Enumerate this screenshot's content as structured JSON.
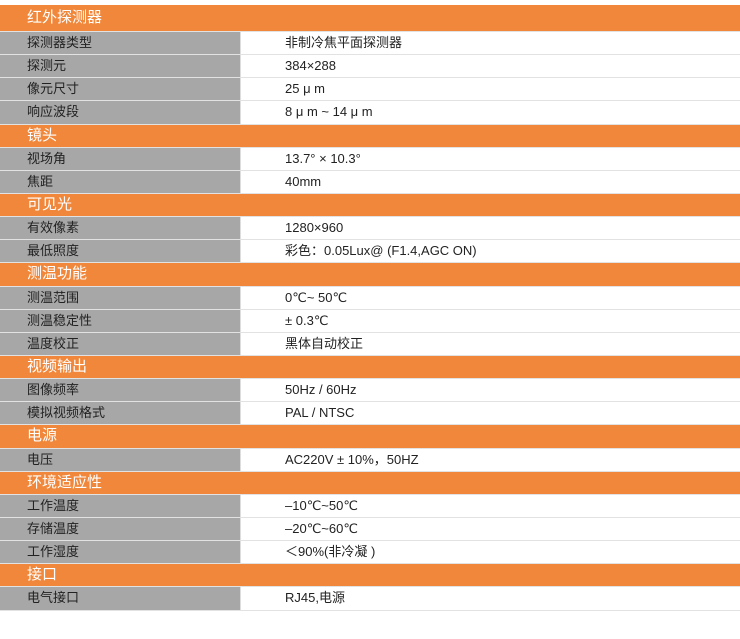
{
  "accent_color": "#F0873A",
  "label_bg": "#A7A7A7",
  "sections": [
    {
      "title": "红外探测器",
      "rows": [
        [
          "探测器类型",
          "非制冷焦平面探测器"
        ],
        [
          "探测元",
          "384×288"
        ],
        [
          "像元尺寸",
          "25 μ m"
        ],
        [
          "响应波段",
          "8 μ m ~ 14 μ m"
        ]
      ]
    },
    {
      "title": "镜头",
      "rows": [
        [
          "视场角",
          "13.7°  × 10.3°"
        ],
        [
          "焦距",
          "40mm"
        ]
      ]
    },
    {
      "title": "可见光",
      "rows": [
        [
          "有效像素",
          "1280×960"
        ],
        [
          "最低照度",
          "彩色：0.05Lux@ (F1.4,AGC ON)"
        ]
      ]
    },
    {
      "title": "测温功能",
      "rows": [
        [
          "测温范围",
          "0℃~ 50℃"
        ],
        [
          "测温稳定性",
          "± 0.3℃"
        ],
        [
          "温度校正",
          "黑体自动校正"
        ]
      ]
    },
    {
      "title": "视频输出",
      "rows": [
        [
          "图像频率",
          "50Hz / 60Hz"
        ],
        [
          "模拟视频格式",
          "PAL / NTSC"
        ]
      ]
    },
    {
      "title": "电源",
      "rows": [
        [
          "电压",
          "AC220V ± 10%，50HZ"
        ]
      ]
    },
    {
      "title": "环境适应性",
      "rows": [
        [
          "工作温度",
          "–10℃~50℃"
        ],
        [
          "存储温度",
          "–20℃~60℃"
        ],
        [
          "工作湿度",
          "＜90%(非冷凝 )"
        ]
      ]
    },
    {
      "title": "接口",
      "rows": [
        [
          "电气接口",
          "RJ45,电源"
        ]
      ]
    }
  ]
}
